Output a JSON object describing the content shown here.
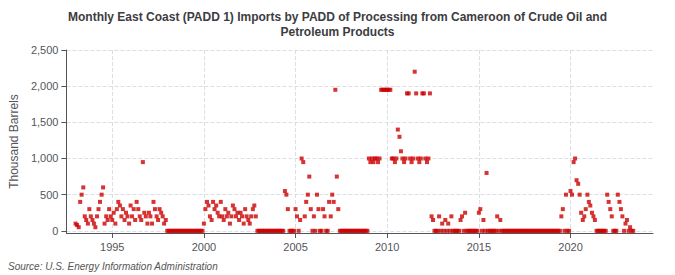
{
  "chart_data": {
    "type": "scatter",
    "title": "Monthly East Coast (PADD 1) Imports by PADD of Processing from Cameroon of Crude Oil and\nPetroleum Products",
    "ylabel": "Thousand Barrels",
    "annotations": [
      "Source: U.S. Energy Information Administration"
    ],
    "color": "#cc0000",
    "marker": "square",
    "grid": true,
    "xlim": [
      1992.5,
      2024.5
    ],
    "xticks": [
      1995,
      2000,
      2005,
      2010,
      2015,
      2020
    ],
    "ylim": [
      -30,
      2500
    ],
    "yticks": [
      0,
      500,
      {
        "value": 1000,
        "label": "1,000"
      },
      {
        "value": 1500,
        "label": "1,500"
      },
      {
        "value": 2000,
        "label": "2,000"
      },
      {
        "value": 2500,
        "label": "2,500"
      }
    ],
    "x": [
      1993.0,
      1993.08,
      1993.17,
      1993.25,
      1993.33,
      1993.42,
      1993.5,
      1993.58,
      1993.67,
      1993.75,
      1993.83,
      1993.92,
      1994.0,
      1994.08,
      1994.17,
      1994.25,
      1994.33,
      1994.42,
      1994.5,
      1994.58,
      1994.67,
      1994.75,
      1994.83,
      1994.92,
      1995.0,
      1995.08,
      1995.17,
      1995.25,
      1995.33,
      1995.42,
      1995.5,
      1995.58,
      1995.67,
      1995.75,
      1995.83,
      1995.92,
      1996.0,
      1996.08,
      1996.17,
      1996.25,
      1996.33,
      1996.42,
      1996.5,
      1996.58,
      1996.67,
      1996.75,
      1996.83,
      1996.92,
      1997.0,
      1997.08,
      1997.17,
      1997.25,
      1997.33,
      1997.42,
      1997.5,
      1997.58,
      1997.67,
      1997.75,
      1997.83,
      1997.92,
      1998.0,
      1998.08,
      1998.17,
      1998.25,
      1998.33,
      1998.42,
      1998.5,
      1998.58,
      1998.67,
      1998.75,
      1998.83,
      1998.92,
      1999.0,
      1999.08,
      1999.17,
      1999.25,
      1999.33,
      1999.42,
      1999.5,
      1999.58,
      1999.67,
      1999.75,
      1999.83,
      1999.92,
      2000.0,
      2000.08,
      2000.17,
      2000.25,
      2000.33,
      2000.42,
      2000.5,
      2000.58,
      2000.67,
      2000.75,
      2000.83,
      2000.92,
      2001.0,
      2001.08,
      2001.17,
      2001.25,
      2001.33,
      2001.42,
      2001.5,
      2001.58,
      2001.67,
      2001.75,
      2001.83,
      2001.92,
      2002.0,
      2002.08,
      2002.17,
      2002.25,
      2002.33,
      2002.42,
      2002.5,
      2002.58,
      2002.67,
      2002.75,
      2002.83,
      2002.92,
      2003.0,
      2003.08,
      2003.17,
      2003.25,
      2003.33,
      2003.42,
      2003.5,
      2003.58,
      2003.67,
      2003.75,
      2003.83,
      2003.92,
      2004.0,
      2004.08,
      2004.17,
      2004.25,
      2004.33,
      2004.42,
      2004.5,
      2004.58,
      2004.67,
      2004.75,
      2004.83,
      2004.92,
      2005.0,
      2005.08,
      2005.17,
      2005.25,
      2005.33,
      2005.42,
      2005.5,
      2005.58,
      2005.67,
      2005.75,
      2005.83,
      2005.92,
      2006.0,
      2006.08,
      2006.17,
      2006.25,
      2006.33,
      2006.42,
      2006.5,
      2006.58,
      2006.67,
      2006.75,
      2006.83,
      2006.92,
      2007.0,
      2007.08,
      2007.17,
      2007.25,
      2007.33,
      2007.42,
      2007.5,
      2007.58,
      2007.67,
      2007.75,
      2007.83,
      2007.92,
      2008.0,
      2008.08,
      2008.17,
      2008.25,
      2008.33,
      2008.42,
      2008.5,
      2008.58,
      2008.67,
      2008.75,
      2008.83,
      2008.92,
      2009.0,
      2009.08,
      2009.17,
      2009.25,
      2009.33,
      2009.42,
      2009.5,
      2009.58,
      2009.67,
      2009.75,
      2009.83,
      2009.92,
      2010.0,
      2010.08,
      2010.17,
      2010.25,
      2010.33,
      2010.42,
      2010.5,
      2010.58,
      2010.67,
      2010.75,
      2010.83,
      2010.92,
      2011.0,
      2011.08,
      2011.17,
      2011.25,
      2011.33,
      2011.42,
      2011.5,
      2011.58,
      2011.67,
      2011.75,
      2011.83,
      2011.92,
      2012.0,
      2012.08,
      2012.17,
      2012.25,
      2012.33,
      2012.42,
      2012.5,
      2012.58,
      2012.67,
      2012.75,
      2012.83,
      2012.92,
      2013.0,
      2013.08,
      2013.17,
      2013.25,
      2013.33,
      2013.42,
      2013.5,
      2013.58,
      2013.67,
      2013.75,
      2013.83,
      2013.92,
      2014.0,
      2014.08,
      2014.17,
      2014.25,
      2014.33,
      2014.42,
      2014.5,
      2014.58,
      2014.67,
      2014.75,
      2014.83,
      2014.92,
      2015.0,
      2015.08,
      2015.17,
      2015.25,
      2015.33,
      2015.42,
      2015.5,
      2015.58,
      2015.67,
      2015.75,
      2015.83,
      2015.92,
      2016.0,
      2016.08,
      2016.17,
      2016.25,
      2016.33,
      2016.42,
      2016.5,
      2016.58,
      2016.67,
      2016.75,
      2016.83,
      2016.92,
      2017.0,
      2017.08,
      2017.17,
      2017.25,
      2017.33,
      2017.42,
      2017.5,
      2017.58,
      2017.67,
      2017.75,
      2017.83,
      2017.92,
      2018.0,
      2018.08,
      2018.17,
      2018.25,
      2018.33,
      2018.42,
      2018.5,
      2018.58,
      2018.67,
      2018.75,
      2018.83,
      2018.92,
      2019.0,
      2019.08,
      2019.17,
      2019.25,
      2019.33,
      2019.42,
      2019.5,
      2019.58,
      2019.67,
      2019.75,
      2019.83,
      2019.92,
      2020.0,
      2020.08,
      2020.17,
      2020.25,
      2020.33,
      2020.42,
      2020.5,
      2020.58,
      2020.67,
      2020.75,
      2020.83,
      2020.92,
      2021.0,
      2021.08,
      2021.17,
      2021.25,
      2021.33,
      2021.42,
      2021.5,
      2021.58,
      2021.67,
      2021.75,
      2021.83,
      2021.92,
      2022.0,
      2022.08,
      2022.17,
      2022.25,
      2022.33,
      2022.42,
      2022.5,
      2022.58,
      2022.67,
      2022.75,
      2022.83,
      2022.92,
      2023.0,
      2023.08,
      2023.17,
      2023.25,
      2023.33,
      2023.42
    ],
    "values": [
      100,
      80,
      50,
      400,
      500,
      600,
      200,
      150,
      100,
      300,
      200,
      150,
      100,
      50,
      200,
      300,
      400,
      500,
      600,
      100,
      200,
      150,
      300,
      200,
      150,
      250,
      100,
      300,
      400,
      350,
      200,
      300,
      150,
      250,
      200,
      100,
      350,
      200,
      300,
      150,
      400,
      300,
      200,
      150,
      950,
      250,
      200,
      100,
      250,
      200,
      100,
      400,
      300,
      200,
      150,
      300,
      250,
      200,
      100,
      150,
      0,
      0,
      0,
      0,
      0,
      0,
      0,
      0,
      0,
      0,
      0,
      0,
      0,
      0,
      0,
      0,
      0,
      0,
      0,
      0,
      0,
      0,
      0,
      0,
      100,
      300,
      400,
      350,
      200,
      150,
      400,
      300,
      350,
      250,
      200,
      400,
      200,
      150,
      300,
      200,
      250,
      100,
      200,
      350,
      300,
      200,
      250,
      150,
      250,
      200,
      100,
      300,
      200,
      150,
      100,
      200,
      300,
      350,
      200,
      0,
      0,
      0,
      0,
      0,
      0,
      0,
      0,
      0,
      0,
      0,
      0,
      0,
      0,
      0,
      0,
      0,
      0,
      550,
      500,
      300,
      0,
      0,
      0,
      0,
      300,
      200,
      0,
      150,
      1000,
      950,
      200,
      400,
      500,
      750,
      300,
      0,
      200,
      0,
      500,
      300,
      0,
      0,
      300,
      200,
      0,
      0,
      400,
      200,
      500,
      400,
      1950,
      750,
      300,
      0,
      0,
      0,
      0,
      0,
      0,
      0,
      0,
      0,
      0,
      0,
      0,
      0,
      0,
      0,
      0,
      0,
      0,
      0,
      1000,
      950,
      1000,
      950,
      1000,
      1000,
      950,
      1000,
      1950,
      1950,
      1950,
      1950,
      1950,
      1950,
      1950,
      1000,
      1000,
      950,
      1000,
      1400,
      1300,
      1100,
      1000,
      950,
      1000,
      1900,
      1900,
      1000,
      950,
      1000,
      2200,
      1900,
      1000,
      950,
      1000,
      1900,
      1900,
      1000,
      950,
      1000,
      1900,
      200,
      150,
      0,
      0,
      0,
      200,
      0,
      100,
      0,
      150,
      0,
      100,
      0,
      200,
      0,
      0,
      0,
      0,
      0,
      150,
      200,
      0,
      250,
      0,
      0,
      0,
      0,
      0,
      0,
      0,
      0,
      250,
      300,
      0,
      150,
      0,
      800,
      0,
      0,
      0,
      0,
      0,
      0,
      200,
      0,
      150,
      0,
      0,
      0,
      0,
      0,
      0,
      0,
      0,
      0,
      0,
      0,
      0,
      0,
      0,
      0,
      0,
      0,
      0,
      0,
      0,
      0,
      0,
      0,
      0,
      0,
      0,
      0,
      0,
      0,
      0,
      0,
      0,
      0,
      0,
      0,
      0,
      0,
      0,
      0,
      200,
      300,
      0,
      500,
      0,
      0,
      550,
      500,
      950,
      1000,
      700,
      650,
      500,
      250,
      150,
      200,
      300,
      500,
      400,
      350,
      250,
      200,
      150,
      0,
      0,
      0,
      0,
      0,
      0,
      0,
      500,
      400,
      300,
      200,
      0,
      0,
      0,
      500,
      400,
      300,
      200,
      0,
      100,
      150,
      0,
      50,
      0,
      0
    ]
  }
}
